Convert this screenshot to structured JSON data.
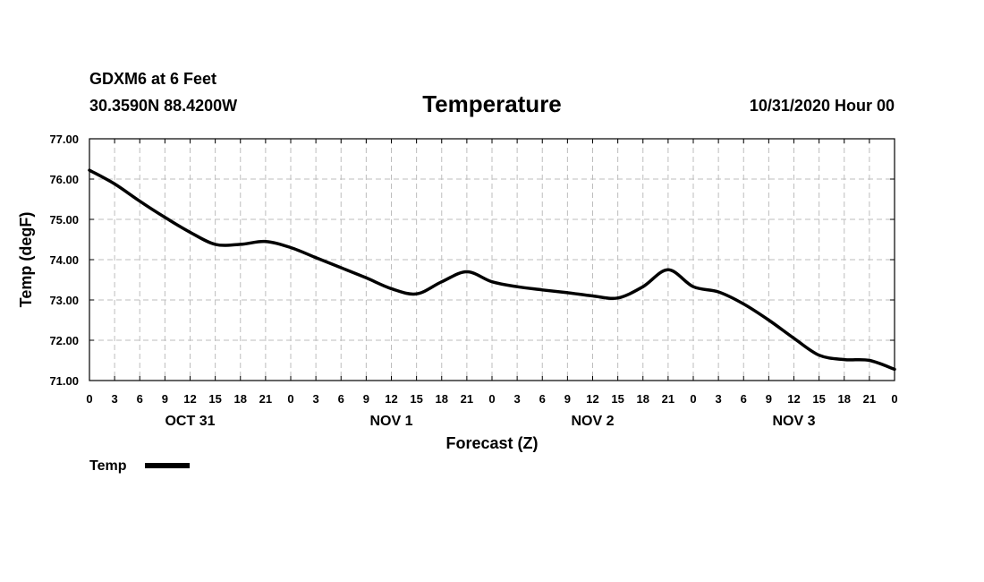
{
  "header": {
    "station": "GDXM6 at 6 Feet",
    "coordinates": "30.3590N 88.4200W",
    "title": "Temperature",
    "issued": "10/31/2020 Hour 00"
  },
  "chart_data": {
    "type": "line",
    "title": "Temperature",
    "xlabel": "Forecast (Z)",
    "ylabel": "Temp (degF)",
    "ylim": [
      71.0,
      77.0
    ],
    "y_ticks": [
      "71.00",
      "72.00",
      "73.00",
      "74.00",
      "75.00",
      "76.00",
      "77.00"
    ],
    "x_ticks": [
      "0",
      "3",
      "6",
      "9",
      "12",
      "15",
      "18",
      "21",
      "0",
      "3",
      "6",
      "9",
      "12",
      "15",
      "18",
      "21",
      "0",
      "3",
      "6",
      "9",
      "12",
      "15",
      "18",
      "21",
      "0",
      "3",
      "6",
      "9",
      "12",
      "15",
      "18",
      "21",
      "0"
    ],
    "day_labels": [
      {
        "label": "OCT 31",
        "hour": 12
      },
      {
        "label": "NOV 1",
        "hour": 36
      },
      {
        "label": "NOV 2",
        "hour": 60
      },
      {
        "label": "NOV 3",
        "hour": 84
      }
    ],
    "grid": true,
    "legend": {
      "placement": "bottom-left",
      "label": "Temp"
    },
    "series": [
      {
        "name": "Temp",
        "color": "#000000",
        "x": [
          0,
          3,
          6,
          9,
          12,
          15,
          18,
          21,
          24,
          27,
          30,
          33,
          36,
          39,
          42,
          45,
          48,
          51,
          54,
          57,
          60,
          63,
          66,
          69,
          72,
          75,
          78,
          81,
          84,
          87,
          90,
          93,
          96
        ],
        "values": [
          76.22,
          75.88,
          75.45,
          75.05,
          74.68,
          74.38,
          74.38,
          74.45,
          74.3,
          74.05,
          73.8,
          73.55,
          73.28,
          73.15,
          73.45,
          73.7,
          73.45,
          73.33,
          73.25,
          73.18,
          73.1,
          73.05,
          73.33,
          73.75,
          73.33,
          73.2,
          72.9,
          72.5,
          72.05,
          71.63,
          71.52,
          71.5,
          71.28
        ]
      }
    ]
  }
}
